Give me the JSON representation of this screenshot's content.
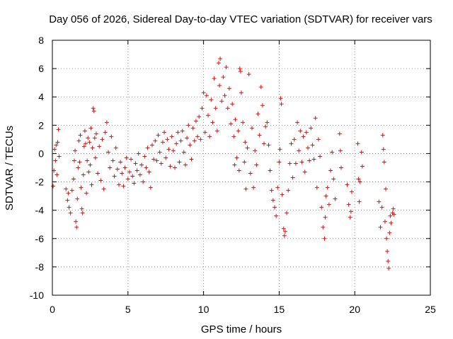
{
  "chart_data": {
    "type": "scatter",
    "title": "Day 056 of 2026, Sidereal Day-to-day VTEC variation (SDTVAR) for receiver vars",
    "xlabel": "GPS time / hours",
    "ylabel": "SDTVAR / TECUs",
    "xlim": [
      0,
      25
    ],
    "ylim": [
      -10,
      8
    ],
    "xticks": [
      0,
      5,
      10,
      15,
      20,
      25
    ],
    "yticks": [
      -10,
      -8,
      -6,
      -4,
      -2,
      0,
      2,
      4,
      6,
      8
    ],
    "xtick_labels": [
      "0",
      "5",
      "10",
      "15",
      "20",
      "25"
    ],
    "ytick_labels": [
      "-10",
      "-8",
      "-6",
      "-4",
      "-2",
      "0",
      "2",
      "4",
      "6",
      "8"
    ],
    "grid": true,
    "marker": "plus",
    "color": "#ff0000",
    "series": [
      {
        "name": "SDTVAR",
        "points": [
          [
            0.05,
            -2.3
          ],
          [
            0.1,
            -1.2
          ],
          [
            0.15,
            0.3
          ],
          [
            0.2,
            -0.5
          ],
          [
            0.25,
            0.6
          ],
          [
            0.3,
            -1.5
          ],
          [
            0.35,
            0.8
          ],
          [
            0.4,
            1.7
          ],
          [
            0.45,
            -0.2
          ],
          [
            0.9,
            -2.5
          ],
          [
            1.0,
            -3.3
          ],
          [
            1.05,
            -2.8
          ],
          [
            1.1,
            -3.8
          ],
          [
            1.2,
            -4.2
          ],
          [
            1.3,
            -2.6
          ],
          [
            1.4,
            -1.8
          ],
          [
            1.45,
            -0.5
          ],
          [
            1.5,
            0.2
          ],
          [
            1.55,
            -4.8
          ],
          [
            1.6,
            -5.2
          ],
          [
            1.65,
            -3.2
          ],
          [
            1.7,
            -1.0
          ],
          [
            1.75,
            0.9
          ],
          [
            1.8,
            -0.6
          ],
          [
            1.85,
            1.3
          ],
          [
            1.9,
            -2.4
          ],
          [
            1.95,
            -3.9
          ],
          [
            2.0,
            -4.2
          ],
          [
            2.05,
            -1.5
          ],
          [
            2.1,
            0.5
          ],
          [
            2.15,
            1.6
          ],
          [
            2.2,
            0.7
          ],
          [
            2.25,
            -2.8
          ],
          [
            2.3,
            -0.5
          ],
          [
            2.35,
            1.1
          ],
          [
            2.4,
            -1.3
          ],
          [
            2.45,
            0.8
          ],
          [
            2.5,
            -0.8
          ],
          [
            2.55,
            1.8
          ],
          [
            2.6,
            -2.2
          ],
          [
            2.65,
            0.4
          ],
          [
            2.7,
            3.2
          ],
          [
            2.75,
            3.0
          ],
          [
            2.8,
            1.1
          ],
          [
            2.85,
            -0.3
          ],
          [
            2.9,
            1.4
          ],
          [
            3.0,
            -1.4
          ],
          [
            3.1,
            0.5
          ],
          [
            3.2,
            -1.9
          ],
          [
            3.3,
            1.0
          ],
          [
            3.4,
            -2.5
          ],
          [
            3.5,
            1.5
          ],
          [
            3.6,
            2.2
          ],
          [
            3.7,
            0.1
          ],
          [
            3.8,
            -1.0
          ],
          [
            3.9,
            1.2
          ],
          [
            4.0,
            -0.5
          ],
          [
            4.1,
            -1.6
          ],
          [
            4.2,
            0.4
          ],
          [
            4.3,
            -1.1
          ],
          [
            4.4,
            -2.2
          ],
          [
            4.5,
            -0.6
          ],
          [
            4.6,
            -1.4
          ],
          [
            4.7,
            -2.3
          ],
          [
            4.8,
            -1.0
          ],
          [
            4.9,
            -0.3
          ],
          [
            5.0,
            -1.8
          ],
          [
            5.1,
            -1.3
          ],
          [
            5.2,
            -0.4
          ],
          [
            5.3,
            -1.6
          ],
          [
            5.4,
            -2.1
          ],
          [
            5.5,
            -0.7
          ],
          [
            5.6,
            -1.2
          ],
          [
            5.7,
            0.0
          ],
          [
            5.8,
            -1.5
          ],
          [
            5.9,
            -0.8
          ],
          [
            6.0,
            -2.0
          ],
          [
            6.1,
            -0.2
          ],
          [
            6.2,
            -1.0
          ],
          [
            6.3,
            0.4
          ],
          [
            6.4,
            -1.3
          ],
          [
            6.5,
            -2.4
          ],
          [
            6.6,
            0.6
          ],
          [
            6.7,
            -0.4
          ],
          [
            6.8,
            0.9
          ],
          [
            6.9,
            -0.5
          ],
          [
            7.0,
            1.3
          ],
          [
            7.1,
            0.1
          ],
          [
            7.2,
            -0.7
          ],
          [
            7.3,
            0.8
          ],
          [
            7.4,
            1.5
          ],
          [
            7.5,
            -0.3
          ],
          [
            7.6,
            1.0
          ],
          [
            7.7,
            0.3
          ],
          [
            7.8,
            -0.9
          ],
          [
            7.9,
            1.2
          ],
          [
            8.0,
            0.2
          ],
          [
            8.1,
            -1.0
          ],
          [
            8.2,
            0.7
          ],
          [
            8.3,
            1.5
          ],
          [
            8.4,
            -0.6
          ],
          [
            8.5,
            0.9
          ],
          [
            8.6,
            1.6
          ],
          [
            8.7,
            0.1
          ],
          [
            8.8,
            -0.8
          ],
          [
            8.9,
            1.1
          ],
          [
            9.0,
            2.0
          ],
          [
            9.1,
            0.6
          ],
          [
            9.2,
            -0.4
          ],
          [
            9.3,
            1.8
          ],
          [
            9.4,
            0.9
          ],
          [
            9.5,
            2.3
          ],
          [
            9.6,
            1.2
          ],
          [
            9.7,
            2.6
          ],
          [
            9.8,
            1.0
          ],
          [
            9.9,
            3.2
          ],
          [
            10.0,
            4.3
          ],
          [
            10.1,
            1.5
          ],
          [
            10.2,
            4.1
          ],
          [
            10.3,
            2.7
          ],
          [
            10.4,
            1.2
          ],
          [
            10.5,
            3.8
          ],
          [
            10.6,
            2.2
          ],
          [
            10.7,
            5.3
          ],
          [
            10.8,
            3.2
          ],
          [
            10.9,
            1.6
          ],
          [
            11.0,
            6.4
          ],
          [
            11.05,
            4.8
          ],
          [
            11.1,
            6.7
          ],
          [
            11.2,
            3.7
          ],
          [
            11.3,
            5.4
          ],
          [
            11.4,
            4.1
          ],
          [
            11.5,
            6.1
          ],
          [
            11.6,
            3.2
          ],
          [
            11.7,
            4.6
          ],
          [
            11.8,
            2.1
          ],
          [
            11.9,
            3.5
          ],
          [
            12.0,
            1.2
          ],
          [
            12.05,
            -0.8
          ],
          [
            12.1,
            2.4
          ],
          [
            12.2,
            -0.3
          ],
          [
            12.3,
            1.6
          ],
          [
            12.35,
            -1.2
          ],
          [
            12.4,
            6.0
          ],
          [
            12.45,
            5.8
          ],
          [
            12.5,
            4.3
          ],
          [
            12.6,
            2.2
          ],
          [
            12.7,
            -0.6
          ],
          [
            12.75,
            0.8
          ],
          [
            12.8,
            -2.5
          ],
          [
            12.9,
            0.4
          ],
          [
            13.0,
            5.6
          ],
          [
            13.1,
            -1.4
          ],
          [
            13.2,
            1.8
          ],
          [
            13.3,
            -2.4
          ],
          [
            13.4,
            0.2
          ],
          [
            13.5,
            -0.8
          ],
          [
            13.6,
            2.8
          ],
          [
            13.7,
            1.3
          ],
          [
            13.8,
            4.7
          ],
          [
            13.9,
            3.4
          ],
          [
            14.0,
            0.7
          ],
          [
            14.1,
            1.9
          ],
          [
            14.2,
            2.2
          ],
          [
            14.3,
            0.6
          ],
          [
            14.4,
            -1.2
          ],
          [
            14.5,
            -2.6
          ],
          [
            14.6,
            -3.3
          ],
          [
            14.7,
            -3.8
          ],
          [
            14.8,
            -4.4
          ],
          [
            14.9,
            -2.4
          ],
          [
            15.0,
            -0.6
          ],
          [
            15.05,
            0.3
          ],
          [
            15.1,
            3.9
          ],
          [
            15.15,
            3.5
          ],
          [
            15.2,
            -2.9
          ],
          [
            15.3,
            -5.3
          ],
          [
            15.35,
            -5.8
          ],
          [
            15.4,
            -5.5
          ],
          [
            15.5,
            -4.2
          ],
          [
            15.6,
            -2.6
          ],
          [
            15.7,
            -0.7
          ],
          [
            15.8,
            0.7
          ],
          [
            15.9,
            -1.7
          ],
          [
            16.0,
            1.0
          ],
          [
            16.1,
            -0.7
          ],
          [
            16.2,
            2.2
          ],
          [
            16.3,
            0.2
          ],
          [
            16.4,
            1.6
          ],
          [
            16.5,
            -0.6
          ],
          [
            16.6,
            1.2
          ],
          [
            16.7,
            -1.3
          ],
          [
            16.8,
            1.5
          ],
          [
            16.9,
            0.4
          ],
          [
            17.0,
            -0.5
          ],
          [
            17.1,
            1.8
          ],
          [
            17.2,
            0.6
          ],
          [
            17.3,
            -0.4
          ],
          [
            17.4,
            2.5
          ],
          [
            17.5,
            -2.4
          ],
          [
            17.6,
            1.0
          ],
          [
            17.7,
            -0.2
          ],
          [
            17.8,
            -3.8
          ],
          [
            17.9,
            -5.2
          ],
          [
            18.0,
            -6.0
          ],
          [
            18.05,
            -4.5
          ],
          [
            18.1,
            -3.0
          ],
          [
            18.2,
            -2.4
          ],
          [
            18.3,
            -3.6
          ],
          [
            18.4,
            -1.2
          ],
          [
            18.5,
            0.1
          ],
          [
            18.6,
            -1.8
          ],
          [
            18.7,
            -3.2
          ],
          [
            19.0,
            1.4
          ],
          [
            19.05,
            0.2
          ],
          [
            19.1,
            -1.0
          ],
          [
            19.5,
            -2.2
          ],
          [
            19.6,
            -3.6
          ],
          [
            19.7,
            -4.5
          ],
          [
            19.75,
            -4.1
          ],
          [
            19.8,
            -2.7
          ],
          [
            20.2,
            0.7
          ],
          [
            20.25,
            -1.8
          ],
          [
            20.3,
            -3.4
          ],
          [
            20.35,
            -2.0
          ],
          [
            20.45,
            0.1
          ],
          [
            20.5,
            -0.9
          ],
          [
            21.6,
            -3.4
          ],
          [
            21.7,
            -5.2
          ],
          [
            21.8,
            -3.8
          ],
          [
            21.85,
            1.3
          ],
          [
            21.9,
            0.3
          ],
          [
            21.95,
            -0.6
          ],
          [
            22.0,
            -4.8
          ],
          [
            22.05,
            -2.5
          ],
          [
            22.1,
            -6.0
          ],
          [
            22.15,
            -6.9
          ],
          [
            22.2,
            -7.6
          ],
          [
            22.25,
            -8.1
          ],
          [
            22.3,
            -5.6
          ],
          [
            22.35,
            -4.4
          ],
          [
            22.4,
            -4.9
          ],
          [
            22.5,
            -4.2
          ],
          [
            22.55,
            -3.9
          ],
          [
            22.6,
            -4.3
          ]
        ]
      }
    ]
  }
}
